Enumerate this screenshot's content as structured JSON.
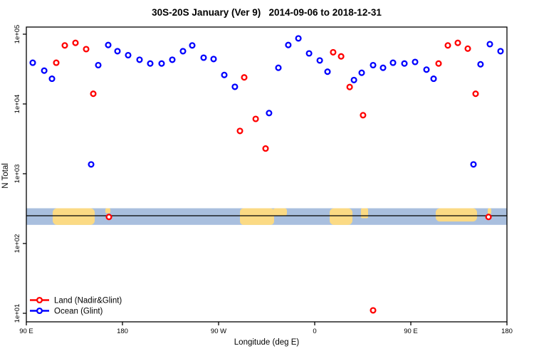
{
  "title": "30S-20S January (Ver 9)   2014-09-06 to 2018-12-31",
  "axes": {
    "x_label": "Longitude (deg E)",
    "y_label": "N Total",
    "x_ticks": [
      {
        "lon": 90,
        "label": "90 E"
      },
      {
        "lon": 180,
        "label": "180"
      },
      {
        "lon": 270,
        "label": "90 W"
      },
      {
        "lon": 360,
        "label": "0"
      },
      {
        "lon": 450,
        "label": "90 E"
      },
      {
        "lon": 540,
        "label": "180"
      }
    ],
    "y_ticks": [
      {
        "value": 100000,
        "label": "1e+05"
      },
      {
        "value": 10000,
        "label": "1e+04"
      },
      {
        "value": 1000,
        "label": "1e+03"
      },
      {
        "value": 100,
        "label": "1e+02"
      },
      {
        "value": 10,
        "label": "1e+01"
      }
    ]
  },
  "colors": {
    "land_marker": "#ff0000",
    "ocean_marker": "#0000ff",
    "band_ocean": "#a9bfde",
    "band_land": "#fbda84",
    "axis": "#000000"
  },
  "map_band": {
    "ocean_color": "#a9bfde",
    "land_color": "#fbda84",
    "top_value": 320,
    "center_value": 250,
    "bottom_value": 185,
    "segments": [
      {
        "lon1": 114.7,
        "lon2": 154.0,
        "frac": 1.0,
        "r": 6
      },
      {
        "lon1": 164.0,
        "lon2": 168.7,
        "frac": 0.3,
        "r": 2
      },
      {
        "lon1": 290.0,
        "lon2": 322.0,
        "frac": 1.0,
        "r": 5
      },
      {
        "lon1": 321.0,
        "lon2": 334.0,
        "frac": 0.45,
        "r": 3
      },
      {
        "lon1": 374.0,
        "lon2": 395.3,
        "frac": 1.0,
        "r": 6
      },
      {
        "lon1": 403.3,
        "lon2": 410.0,
        "frac": 0.6,
        "r": 2
      },
      {
        "lon1": 473.3,
        "lon2": 512.0,
        "frac": 0.8,
        "r": 6
      },
      {
        "lon1": 522.0,
        "lon2": 525.3,
        "frac": 0.35,
        "r": 2
      }
    ]
  },
  "chart_data": {
    "type": "scatter",
    "title": "30S-20S January (Ver 9)   2014-09-06 to 2018-12-31",
    "xlabel": "Longitude (deg E)",
    "ylabel": "N Total",
    "x_axis": {
      "scale": "linear",
      "range_deg_east_continuous": [
        90,
        540
      ],
      "tick_labels": [
        "90 E",
        "180",
        "90 W",
        "0",
        "90 E",
        "180"
      ]
    },
    "y_axis": {
      "scale": "log",
      "range": [
        10,
        100000
      ],
      "tick_labels": [
        "1e+01",
        "1e+02",
        "1e+03",
        "1e+04",
        "1e+05"
      ]
    },
    "legend_position": "bottom-left",
    "series": [
      {
        "name": "Land (Nadir&Glint)",
        "color": "#ff0000",
        "marker": "open-circle",
        "points": [
          [
            118.0,
            39000
          ],
          [
            126.0,
            69000
          ],
          [
            136.0,
            75000
          ],
          [
            146.0,
            61000
          ],
          [
            152.7,
            14000
          ],
          [
            167.3,
            240
          ],
          [
            290.0,
            4100
          ],
          [
            294.0,
            24000
          ],
          [
            304.7,
            6100
          ],
          [
            314.0,
            2300
          ],
          [
            377.3,
            55000
          ],
          [
            384.7,
            48000
          ],
          [
            392.7,
            17500
          ],
          [
            405.3,
            6900
          ],
          [
            414.7,
            11
          ],
          [
            476.0,
            38000
          ],
          [
            484.7,
            69000
          ],
          [
            494.0,
            75000
          ],
          [
            503.3,
            62000
          ],
          [
            510.7,
            14000
          ],
          [
            522.7,
            240
          ]
        ]
      },
      {
        "name": "Ocean (Glint)",
        "color": "#0000ff",
        "marker": "open-circle",
        "points": [
          [
            96.0,
            39000
          ],
          [
            106.7,
            30000
          ],
          [
            114.0,
            23000
          ],
          [
            150.7,
            1360
          ],
          [
            157.3,
            36000
          ],
          [
            166.7,
            70000
          ],
          [
            175.3,
            57000
          ],
          [
            185.3,
            50000
          ],
          [
            196.0,
            43000
          ],
          [
            206.0,
            38000
          ],
          [
            216.7,
            38000
          ],
          [
            226.7,
            43000
          ],
          [
            236.7,
            57000
          ],
          [
            245.3,
            69000
          ],
          [
            256.0,
            46000
          ],
          [
            265.3,
            44000
          ],
          [
            275.3,
            26000
          ],
          [
            285.3,
            17600
          ],
          [
            317.3,
            7400
          ],
          [
            326.0,
            33000
          ],
          [
            335.3,
            70000
          ],
          [
            344.7,
            87000
          ],
          [
            354.7,
            53000
          ],
          [
            364.7,
            42000
          ],
          [
            372.0,
            29000
          ],
          [
            396.7,
            22000
          ],
          [
            404.0,
            28000
          ],
          [
            414.7,
            36000
          ],
          [
            424.0,
            33000
          ],
          [
            433.3,
            39000
          ],
          [
            444.0,
            38000
          ],
          [
            454.0,
            40000
          ],
          [
            464.7,
            31000
          ],
          [
            471.3,
            23000
          ],
          [
            508.7,
            1360
          ],
          [
            515.3,
            37000
          ],
          [
            524.0,
            72000
          ],
          [
            534.0,
            57000
          ]
        ]
      }
    ]
  }
}
